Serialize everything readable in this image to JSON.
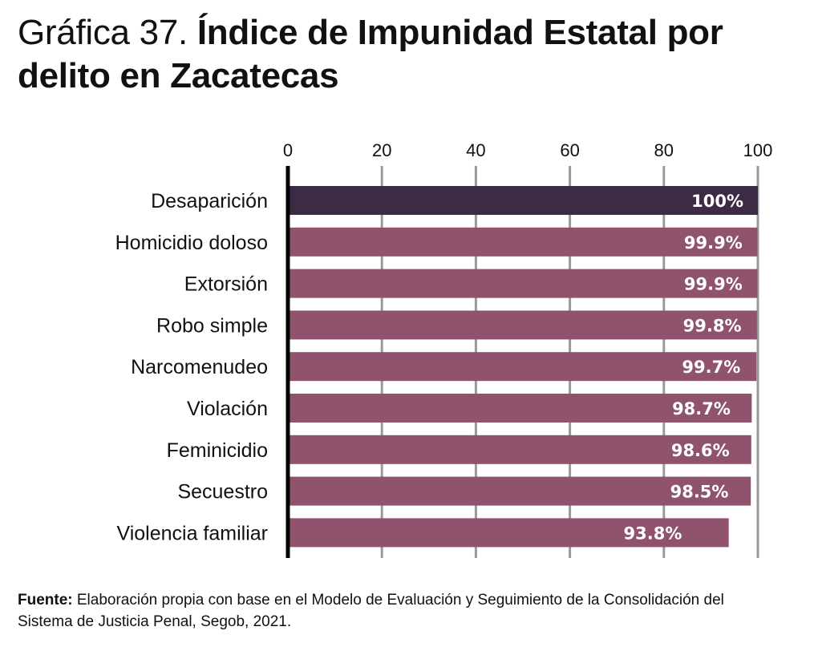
{
  "title": {
    "lead": "Gráfica 37.",
    "main": "Índice de Impunidad Estatal por delito en Zacatecas"
  },
  "colors": {
    "highlight": "#3d2a45",
    "bar": "#8f536e",
    "grid": "#999999",
    "axis": "#000000",
    "value_text": "#ffffff"
  },
  "chart_data": {
    "type": "bar",
    "orientation": "horizontal",
    "title": "Gráfica 37. Índice de Impunidad Estatal por delito en Zacatecas",
    "xlabel": "",
    "ylabel": "",
    "xlim": [
      0,
      100
    ],
    "xticks": [
      0,
      20,
      40,
      60,
      80,
      100
    ],
    "xtick_labels": [
      "0",
      "20",
      "40",
      "60",
      "80",
      "100"
    ],
    "axis_position": "top",
    "grid": true,
    "categories": [
      "Desaparición",
      "Homicidio doloso",
      "Extorsión",
      "Robo simple",
      "Narcomenudeo",
      "Violación",
      "Feminicidio",
      "Secuestro",
      "Violencia familiar"
    ],
    "values": [
      100,
      99.9,
      99.9,
      99.8,
      99.7,
      98.7,
      98.6,
      98.5,
      93.8
    ],
    "value_labels": [
      "100%",
      "99.9%",
      "99.9%",
      "99.8%",
      "99.7%",
      "98.7%",
      "98.6%",
      "98.5%",
      "93.8%"
    ],
    "highlight_index": 0
  },
  "source": {
    "label": "Fuente:",
    "text": " Elaboración propia con base en el Modelo de Evaluación y Seguimiento de la Consolidación del Sistema de Justicia Penal, Segob, 2021."
  }
}
